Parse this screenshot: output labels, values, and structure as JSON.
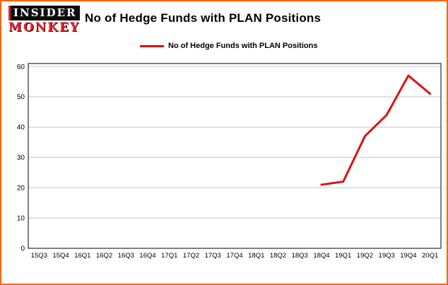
{
  "logo": {
    "line1": "INSIDER",
    "line2": "MONKEY"
  },
  "title": "No of Hedge Funds with PLAN Positions",
  "legend": {
    "label": "No of Hedge Funds with PLAN Positions"
  },
  "colors": {
    "frame_border": "#ff6600",
    "monkey_red": "#e8232a",
    "line_red": "#dd1111",
    "grid": "#c6c6c6",
    "axis": "#000000"
  },
  "chart_data": {
    "type": "line",
    "title": "No of Hedge Funds with PLAN Positions",
    "categories": [
      "15Q3",
      "15Q4",
      "16Q1",
      "16Q2",
      "16Q3",
      "16Q4",
      "17Q1",
      "17Q2",
      "17Q3",
      "17Q4",
      "18Q1",
      "18Q2",
      "18Q3",
      "18Q4",
      "19Q1",
      "19Q2",
      "19Q3",
      "19Q4",
      "20Q1"
    ],
    "values": [
      null,
      null,
      null,
      null,
      null,
      null,
      null,
      null,
      null,
      null,
      null,
      null,
      null,
      21,
      22,
      37,
      44,
      57,
      51
    ],
    "xlabel": "",
    "ylabel": "",
    "ylim": [
      0,
      61
    ],
    "yticks": [
      0,
      10,
      20,
      30,
      40,
      50,
      60
    ],
    "grid": true,
    "line_color": "#dd1111",
    "legend_position": "top-left"
  }
}
